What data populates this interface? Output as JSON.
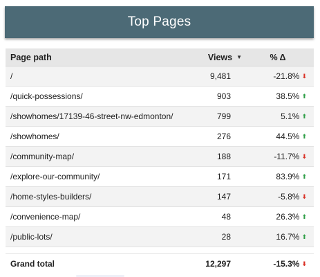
{
  "header": {
    "title": "Top Pages"
  },
  "table": {
    "columns": {
      "path": "Page path",
      "views": "Views",
      "delta": "% Δ"
    },
    "rows": [
      {
        "path": "/",
        "views": "9,481",
        "delta": "-21.8%",
        "dir": "down"
      },
      {
        "path": "/quick-possessions/",
        "views": "903",
        "delta": "38.5%",
        "dir": "up"
      },
      {
        "path": "/showhomes/17139-46-street-nw-edmonton/",
        "views": "799",
        "delta": "5.1%",
        "dir": "up"
      },
      {
        "path": "/showhomes/",
        "views": "276",
        "delta": "44.5%",
        "dir": "up"
      },
      {
        "path": "/community-map/",
        "views": "188",
        "delta": "-11.7%",
        "dir": "down"
      },
      {
        "path": "/explore-our-community/",
        "views": "171",
        "delta": "83.9%",
        "dir": "up"
      },
      {
        "path": "/home-styles-builders/",
        "views": "147",
        "delta": "-5.8%",
        "dir": "down"
      },
      {
        "path": "/convenience-map/",
        "views": "48",
        "delta": "26.3%",
        "dir": "up"
      },
      {
        "path": "/public-lots/",
        "views": "28",
        "delta": "16.7%",
        "dir": "up"
      }
    ],
    "total": {
      "label": "Grand total",
      "views": "12,297",
      "delta": "-15.3%",
      "dir": "down"
    }
  },
  "colors": {
    "header_bg": "#4c6a76",
    "up": "#2e9e46",
    "down": "#d93025"
  },
  "icons": {
    "sort": "sort-descending-icon",
    "up": "arrow-up-icon",
    "down": "arrow-down-icon"
  }
}
